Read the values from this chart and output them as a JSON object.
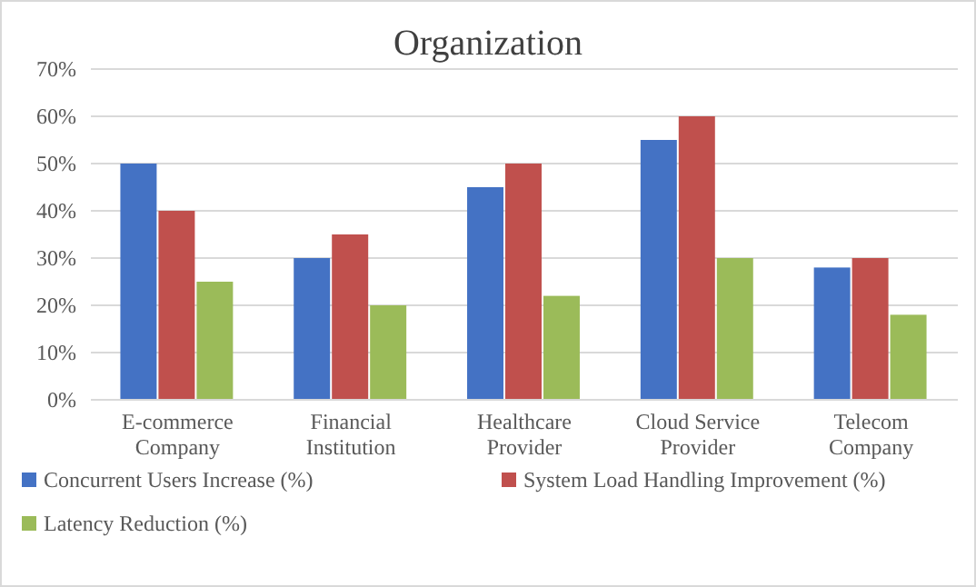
{
  "chart_data": {
    "type": "bar",
    "title": "Organization",
    "categories": [
      "E-commerce Company",
      "Financial Institution",
      "Healthcare Provider",
      "Cloud Service Provider",
      "Telecom Company"
    ],
    "series": [
      {
        "name": "Concurrent Users Increase (%)",
        "color": "#4472c4",
        "values": [
          50,
          30,
          45,
          55,
          28
        ]
      },
      {
        "name": "System Load Handling Improvement (%)",
        "color": "#c0504d",
        "values": [
          40,
          35,
          50,
          60,
          30
        ]
      },
      {
        "name": "Latency Reduction (%)",
        "color": "#9bbb59",
        "values": [
          25,
          20,
          22,
          30,
          18
        ]
      }
    ],
    "ylim": [
      0,
      70
    ],
    "yticks": [
      {
        "value": 0,
        "label": "0%"
      },
      {
        "value": 10,
        "label": "10%"
      },
      {
        "value": 20,
        "label": "20%"
      },
      {
        "value": 30,
        "label": "30%"
      },
      {
        "value": 40,
        "label": "40%"
      },
      {
        "value": 50,
        "label": "50%"
      },
      {
        "value": 60,
        "label": "60%"
      },
      {
        "value": 70,
        "label": "70%"
      }
    ],
    "grid": "y",
    "legend": "bottom"
  }
}
